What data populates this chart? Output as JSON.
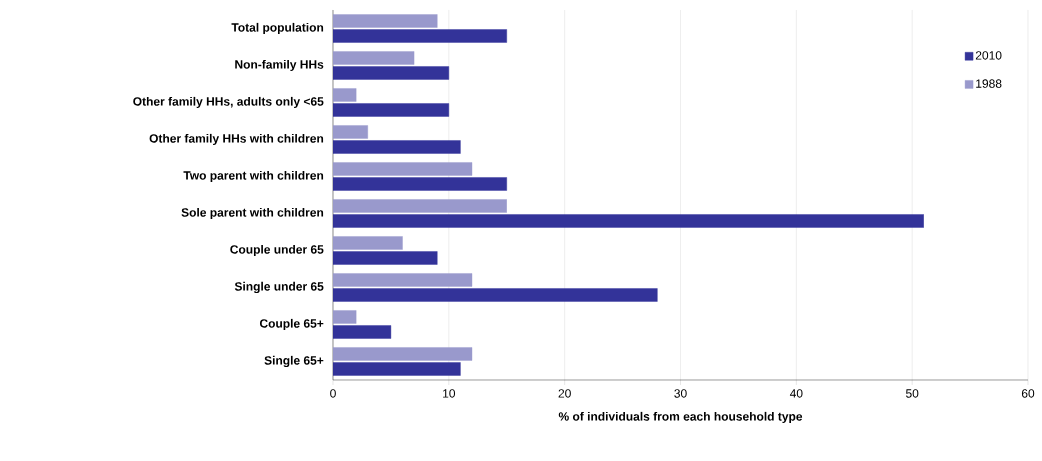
{
  "chart_data": {
    "type": "bar",
    "orientation": "horizontal",
    "xlabel": "% of individuals from each household type",
    "categories": [
      "Total population",
      "Non-family HHs",
      "Other family HHs, adults only <65",
      "Other family HHs with children",
      "Two parent with children",
      "Sole parent with children",
      "Couple under 65",
      "Single under 65",
      "Couple 65+",
      "Single 65+"
    ],
    "series": [
      {
        "name": "2010",
        "color": "#333399",
        "values": [
          15,
          10,
          10,
          11,
          15,
          51,
          9,
          28,
          5,
          11
        ]
      },
      {
        "name": "1988",
        "color": "#9999cc",
        "values": [
          9,
          7,
          2,
          3,
          12,
          15,
          6,
          12,
          2,
          12
        ]
      }
    ],
    "xlim": [
      0,
      60
    ],
    "xticks": [
      0,
      10,
      20,
      30,
      40,
      50,
      60
    ],
    "grid": "x",
    "legend": "top right"
  }
}
